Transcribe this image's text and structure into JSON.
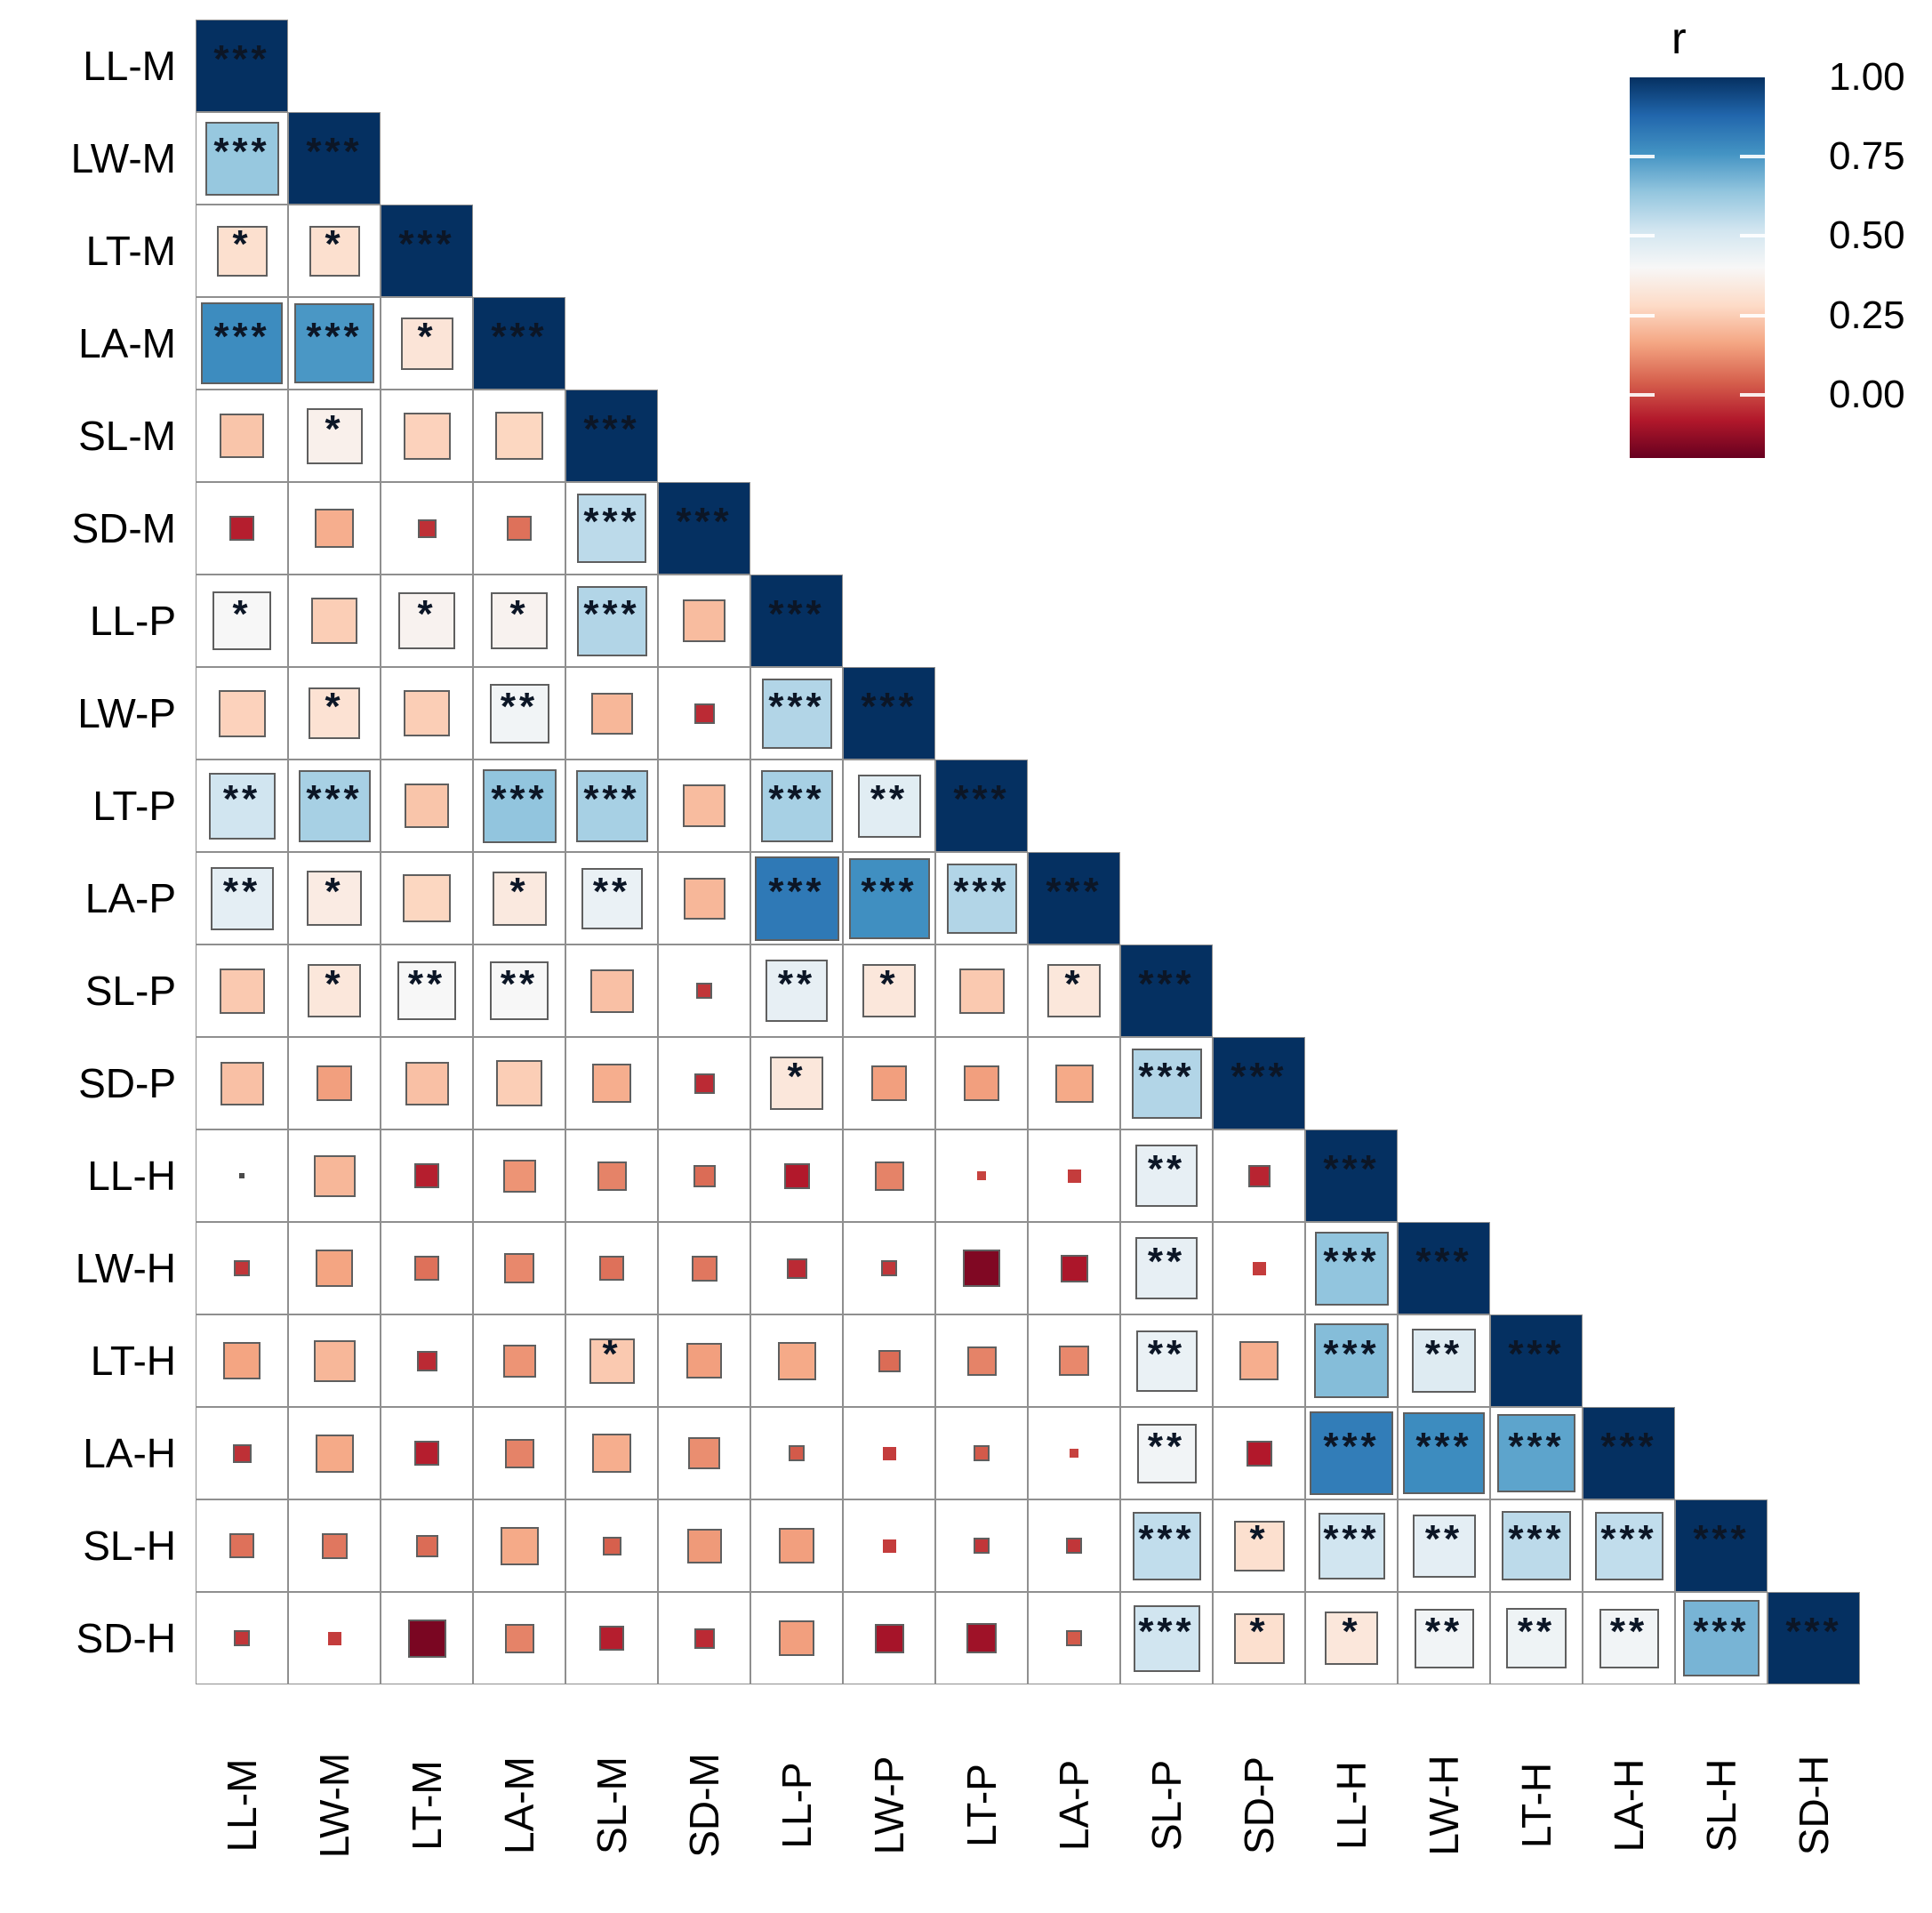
{
  "chart_data": {
    "type": "heatmap",
    "subtype": "correlation-matrix-lower-triangle",
    "title": "",
    "variables": [
      "LL-M",
      "LW-M",
      "LT-M",
      "LA-M",
      "SL-M",
      "SD-M",
      "LL-P",
      "LW-P",
      "LT-P",
      "LA-P",
      "SL-P",
      "SD-P",
      "LL-H",
      "LW-H",
      "LT-H",
      "LA-H",
      "SL-H",
      "SD-H"
    ],
    "legend": {
      "title": "r",
      "ticks": [
        "1.00",
        "0.75",
        "0.50",
        "0.25",
        "0.00"
      ],
      "tick_values": [
        1.0,
        0.75,
        0.5,
        0.25,
        0.0
      ],
      "domain": [
        -0.2,
        1.0
      ],
      "position": "top-right",
      "palette": [
        "#67001f",
        "#b2182b",
        "#d6604d",
        "#f4a582",
        "#fddbc7",
        "#f7f7f7",
        "#d1e5f0",
        "#92c5de",
        "#4393c3",
        "#2166ac",
        "#053061"
      ]
    },
    "grid": true,
    "size_encoding": "square side proportional to sqrt(|r|)",
    "rows": [
      {
        "label": "LL-M",
        "values": [
          1.0
        ],
        "stars": [
          "***"
        ]
      },
      {
        "label": "LW-M",
        "values": [
          0.63,
          1.0
        ],
        "stars": [
          "***",
          "***"
        ]
      },
      {
        "label": "LT-M",
        "values": [
          0.3,
          0.3,
          1.0
        ],
        "stars": [
          "*",
          "*",
          "***"
        ]
      },
      {
        "label": "LA-M",
        "values": [
          0.78,
          0.75,
          0.32,
          1.0
        ],
        "stars": [
          "***",
          "***",
          "*",
          "***"
        ]
      },
      {
        "label": "SL-M",
        "values": [
          0.23,
          0.37,
          0.26,
          0.27,
          1.0
        ],
        "stars": [
          "",
          "*",
          "",
          "",
          "***"
        ]
      },
      {
        "label": "SD-M",
        "values": [
          -0.07,
          0.18,
          -0.04,
          0.07,
          0.56,
          1.0
        ],
        "stars": [
          "",
          "",
          "",
          "",
          "***",
          "***"
        ]
      },
      {
        "label": "LL-P",
        "values": [
          0.4,
          0.25,
          0.38,
          0.38,
          0.58,
          0.21,
          1.0
        ],
        "stars": [
          "*",
          "",
          "*",
          "*",
          "***",
          "",
          "***"
        ]
      },
      {
        "label": "LW-P",
        "values": [
          0.26,
          0.31,
          0.25,
          0.42,
          0.2,
          -0.05,
          0.58,
          1.0
        ],
        "stars": [
          "",
          "*",
          "",
          "**",
          "",
          "",
          "***",
          "***"
        ]
      },
      {
        "label": "LT-P",
        "values": [
          0.52,
          0.6,
          0.23,
          0.64,
          0.6,
          0.21,
          0.6,
          0.47,
          1.0
        ],
        "stars": [
          "**",
          "***",
          "",
          "***",
          "***",
          "",
          "***",
          "**",
          "***"
        ]
      },
      {
        "label": "LA-P",
        "values": [
          0.46,
          0.35,
          0.27,
          0.34,
          0.44,
          0.2,
          0.83,
          0.77,
          0.58,
          1.0
        ],
        "stars": [
          "**",
          "*",
          "",
          "*",
          "**",
          "",
          "***",
          "***",
          "***",
          "***"
        ]
      },
      {
        "label": "SL-P",
        "values": [
          0.24,
          0.33,
          0.4,
          0.4,
          0.22,
          -0.03,
          0.45,
          0.33,
          0.24,
          0.33,
          1.0
        ],
        "stars": [
          "",
          "*",
          "**",
          "**",
          "",
          "",
          "**",
          "*",
          "",
          "*",
          "***"
        ]
      },
      {
        "label": "SD-P",
        "values": [
          0.22,
          0.15,
          0.22,
          0.25,
          0.18,
          -0.05,
          0.33,
          0.15,
          0.15,
          0.17,
          0.58,
          1.0
        ],
        "stars": [
          "",
          "",
          "",
          "",
          "",
          "",
          "*",
          "",
          "",
          "",
          "***",
          "***"
        ]
      },
      {
        "label": "LL-H",
        "values": [
          0.0,
          0.2,
          -0.07,
          0.13,
          0.1,
          0.06,
          -0.08,
          0.1,
          -0.01,
          -0.02,
          0.45,
          -0.06,
          1.0
        ],
        "stars": [
          "",
          "",
          "",
          "",
          "",
          "",
          "",
          "",
          "",
          "",
          "**",
          "",
          "***"
        ]
      },
      {
        "label": "LW-H",
        "values": [
          -0.03,
          0.16,
          0.07,
          0.11,
          0.07,
          0.08,
          -0.05,
          -0.03,
          -0.16,
          -0.09,
          0.45,
          -0.02,
          0.64,
          1.0
        ],
        "stars": [
          "",
          "",
          "",
          "",
          "",
          "",
          "",
          "",
          "",
          "",
          "**",
          "",
          "***",
          "***"
        ]
      },
      {
        "label": "LT-H",
        "values": [
          0.16,
          0.2,
          -0.05,
          0.13,
          0.24,
          0.15,
          0.17,
          0.06,
          0.1,
          0.11,
          0.44,
          0.18,
          0.66,
          0.48,
          1.0
        ],
        "stars": [
          "",
          "",
          "",
          "",
          "*",
          "",
          "",
          "",
          "",
          "",
          "**",
          "",
          "***",
          "**",
          "***"
        ]
      },
      {
        "label": "LA-H",
        "values": [
          -0.04,
          0.17,
          -0.07,
          0.1,
          0.18,
          0.12,
          0.03,
          -0.02,
          0.03,
          -0.01,
          0.42,
          -0.08,
          0.82,
          0.78,
          0.72,
          1.0
        ],
        "stars": [
          "",
          "",
          "",
          "",
          "",
          "",
          "",
          "",
          "",
          "",
          "**",
          "",
          "***",
          "***",
          "***",
          "***"
        ]
      },
      {
        "label": "SL-H",
        "values": [
          0.07,
          0.08,
          0.06,
          0.17,
          0.04,
          0.14,
          0.15,
          -0.02,
          -0.03,
          -0.03,
          0.55,
          0.3,
          0.52,
          0.46,
          0.56,
          0.55,
          1.0
        ],
        "stars": [
          "",
          "",
          "",
          "",
          "",
          "",
          "",
          "",
          "",
          "",
          "***",
          "*",
          "***",
          "**",
          "***",
          "***",
          "***"
        ]
      },
      {
        "label": "SD-H",
        "values": [
          -0.03,
          -0.02,
          -0.17,
          0.1,
          -0.07,
          -0.05,
          0.15,
          -0.1,
          -0.11,
          0.03,
          0.52,
          0.3,
          0.33,
          0.42,
          0.43,
          0.42,
          0.68,
          1.0
        ],
        "stars": [
          "",
          "",
          "",
          "",
          "",
          "",
          "",
          "",
          "",
          "",
          "***",
          "*",
          "*",
          "**",
          "**",
          "**",
          "***",
          "***"
        ]
      }
    ]
  }
}
